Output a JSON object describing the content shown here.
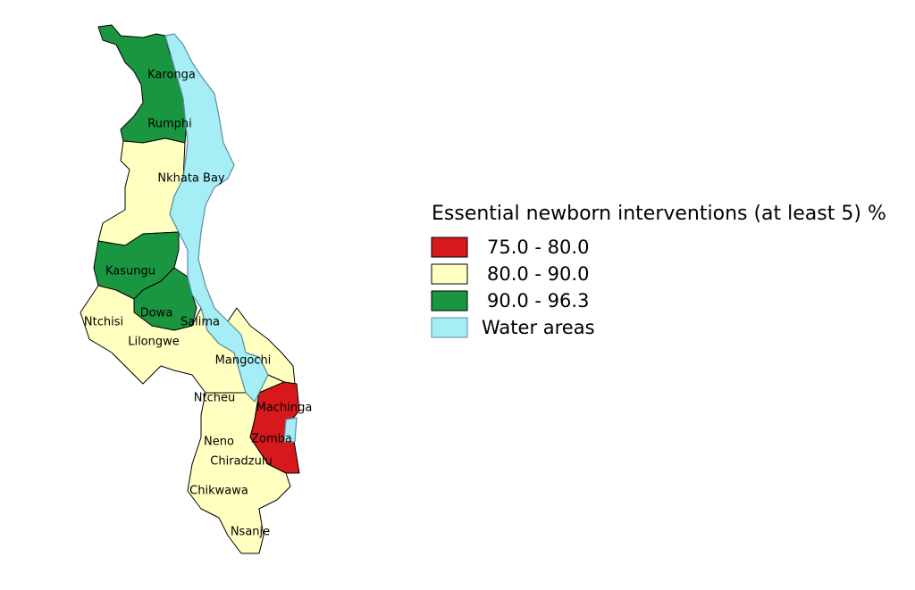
{
  "map": {
    "districts": [
      "Karonga",
      "Rumphi",
      "Nkhata Bay",
      "Kasungu",
      "Ntchisi",
      "Dowa",
      "Salima",
      "Lilongwe",
      "Mangochi",
      "Ntcheu",
      "Machinga",
      "Neno",
      "Zomba",
      "Chiradzulu",
      "Chikwawa",
      "Nsanje"
    ]
  },
  "legend": {
    "title": "Essential newborn interventions (at least 5) %",
    "items": [
      {
        "label": "75.0 - 80.0",
        "color": "#d7191c"
      },
      {
        "label": "80.0 - 90.0",
        "color": "#ffffc0"
      },
      {
        "label": "90.0 - 96.3",
        "color": "#1a9641"
      },
      {
        "label": "Water areas",
        "color": "#a5eef5"
      }
    ]
  }
}
